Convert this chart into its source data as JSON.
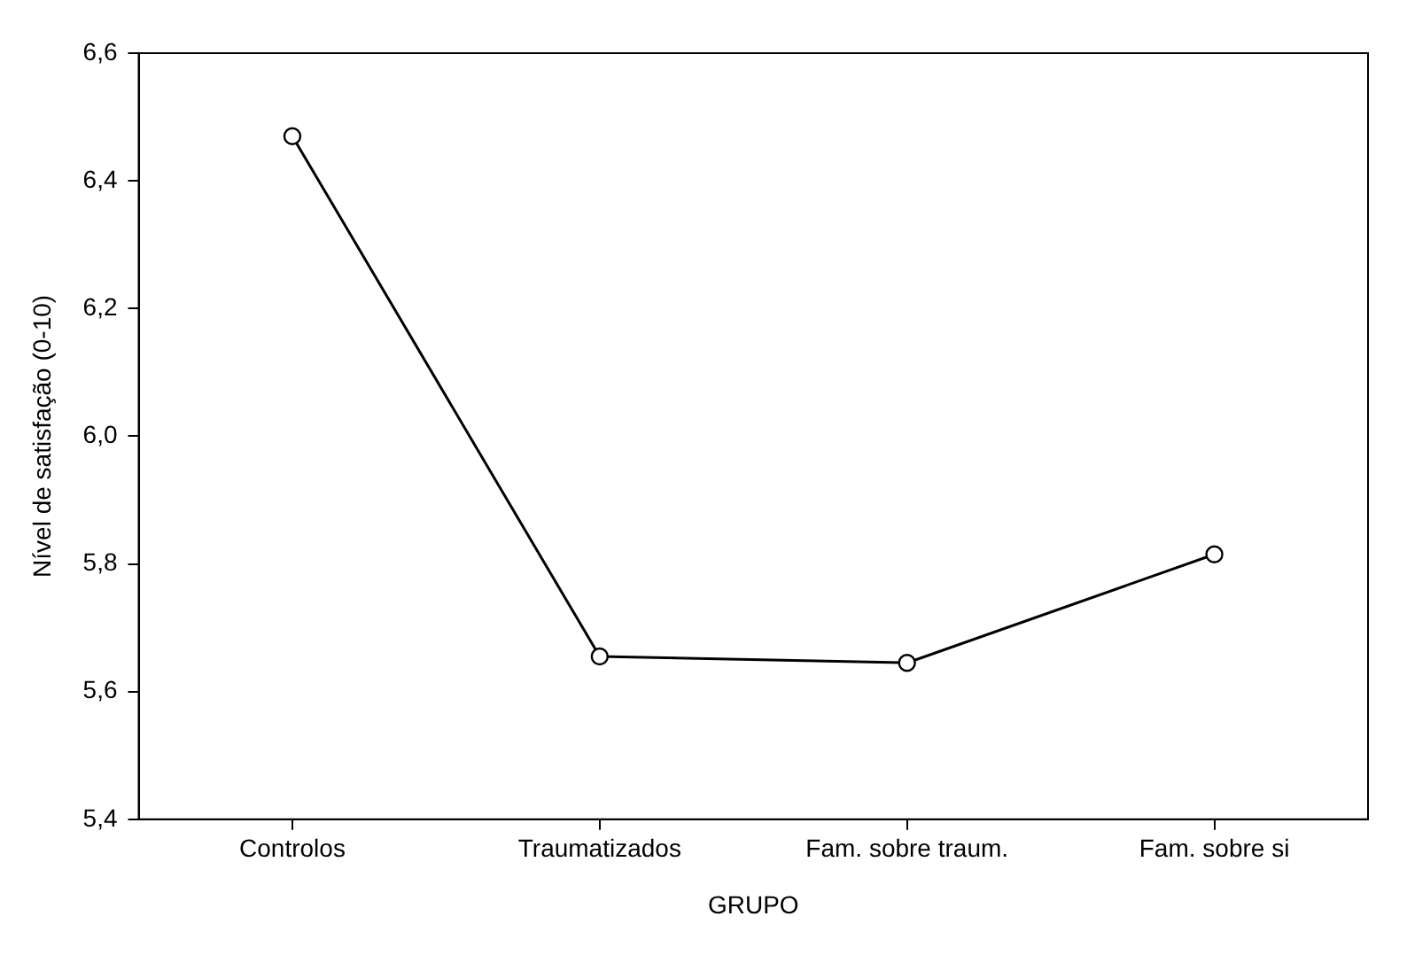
{
  "chart_data": {
    "type": "line",
    "xlabel": "GRUPO",
    "ylabel": "Nível de satisfação (0-10)",
    "categories": [
      "Controlos",
      "Traumatizados",
      "Fam. sobre traum.",
      "Fam. sobre si"
    ],
    "series": [
      {
        "color": "#000000",
        "values": [
          6.47,
          5.655,
          5.645,
          5.815
        ]
      }
    ],
    "ylim": [
      5.4,
      6.6
    ],
    "yticks": [
      {
        "value": 5.4,
        "label": "5,4"
      },
      {
        "value": 5.6,
        "label": "5,6"
      },
      {
        "value": 5.8,
        "label": "5,8"
      },
      {
        "value": 6.0,
        "label": "6,0"
      },
      {
        "value": 6.2,
        "label": "6,2"
      },
      {
        "value": 6.4,
        "label": "6,4"
      },
      {
        "value": 6.6,
        "label": "6,6"
      }
    ],
    "marker": "circle",
    "line_style": "solid",
    "grid": false,
    "legend": false
  }
}
